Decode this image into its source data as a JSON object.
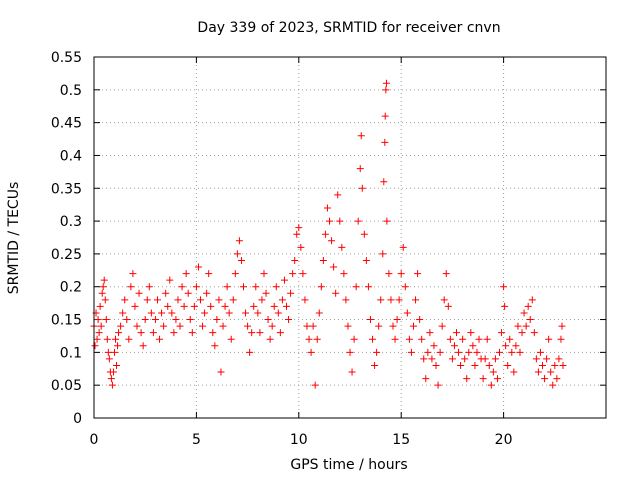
{
  "chart_data": {
    "type": "scatter",
    "title": "Day 339 of 2023, SRMTID for receiver cnvn",
    "xlabel": "GPS time / hours",
    "ylabel": "SRMTID / TECUs",
    "xlim": [
      0,
      25
    ],
    "ylim": [
      0,
      0.55
    ],
    "xticks": [
      0,
      5,
      10,
      15,
      20
    ],
    "yticks": [
      0,
      0.05,
      0.1,
      0.15,
      0.2,
      0.25,
      0.3,
      0.35,
      0.4,
      0.45,
      0.5,
      0.55
    ],
    "ytick_labels": [
      "0",
      "0.05",
      "0.1",
      "0.15",
      "0.2",
      "0.25",
      "0.3",
      "0.35",
      "0.4",
      "0.45",
      "0.5",
      "0.55"
    ],
    "xtick_labels": [
      "0",
      "5",
      "10",
      "15",
      "20"
    ],
    "grid": true,
    "marker": "+",
    "color": "#ff0000",
    "series": [
      {
        "name": "SRMTID",
        "points": [
          [
            0.0,
            0.14
          ],
          [
            0.05,
            0.11
          ],
          [
            0.1,
            0.16
          ],
          [
            0.15,
            0.12
          ],
          [
            0.2,
            0.15
          ],
          [
            0.25,
            0.13
          ],
          [
            0.3,
            0.17
          ],
          [
            0.35,
            0.14
          ],
          [
            0.4,
            0.19
          ],
          [
            0.45,
            0.2
          ],
          [
            0.5,
            0.21
          ],
          [
            0.55,
            0.18
          ],
          [
            0.6,
            0.15
          ],
          [
            0.65,
            0.12
          ],
          [
            0.7,
            0.1
          ],
          [
            0.75,
            0.09
          ],
          [
            0.8,
            0.07
          ],
          [
            0.85,
            0.06
          ],
          [
            0.9,
            0.05
          ],
          [
            0.95,
            0.07
          ],
          [
            1.0,
            0.1
          ],
          [
            1.05,
            0.12
          ],
          [
            1.1,
            0.08
          ],
          [
            1.15,
            0.11
          ],
          [
            1.2,
            0.13
          ],
          [
            1.3,
            0.14
          ],
          [
            1.4,
            0.16
          ],
          [
            1.5,
            0.18
          ],
          [
            1.6,
            0.15
          ],
          [
            1.7,
            0.12
          ],
          [
            1.8,
            0.2
          ],
          [
            1.9,
            0.22
          ],
          [
            2.0,
            0.17
          ],
          [
            2.1,
            0.14
          ],
          [
            2.2,
            0.19
          ],
          [
            2.3,
            0.13
          ],
          [
            2.4,
            0.11
          ],
          [
            2.5,
            0.15
          ],
          [
            2.6,
            0.18
          ],
          [
            2.7,
            0.2
          ],
          [
            2.8,
            0.16
          ],
          [
            2.9,
            0.13
          ],
          [
            3.0,
            0.15
          ],
          [
            3.1,
            0.18
          ],
          [
            3.2,
            0.12
          ],
          [
            3.3,
            0.16
          ],
          [
            3.4,
            0.14
          ],
          [
            3.5,
            0.19
          ],
          [
            3.6,
            0.17
          ],
          [
            3.7,
            0.21
          ],
          [
            3.8,
            0.16
          ],
          [
            3.9,
            0.13
          ],
          [
            4.0,
            0.15
          ],
          [
            4.1,
            0.18
          ],
          [
            4.2,
            0.14
          ],
          [
            4.3,
            0.2
          ],
          [
            4.4,
            0.17
          ],
          [
            4.5,
            0.22
          ],
          [
            4.6,
            0.19
          ],
          [
            4.7,
            0.15
          ],
          [
            4.8,
            0.13
          ],
          [
            4.9,
            0.17
          ],
          [
            5.0,
            0.2
          ],
          [
            5.1,
            0.23
          ],
          [
            5.2,
            0.18
          ],
          [
            5.3,
            0.14
          ],
          [
            5.4,
            0.16
          ],
          [
            5.5,
            0.19
          ],
          [
            5.6,
            0.22
          ],
          [
            5.7,
            0.17
          ],
          [
            5.8,
            0.13
          ],
          [
            5.9,
            0.11
          ],
          [
            6.0,
            0.15
          ],
          [
            6.1,
            0.18
          ],
          [
            6.2,
            0.07
          ],
          [
            6.3,
            0.14
          ],
          [
            6.4,
            0.17
          ],
          [
            6.5,
            0.2
          ],
          [
            6.6,
            0.16
          ],
          [
            6.7,
            0.12
          ],
          [
            6.8,
            0.18
          ],
          [
            6.9,
            0.22
          ],
          [
            7.0,
            0.25
          ],
          [
            7.1,
            0.27
          ],
          [
            7.2,
            0.24
          ],
          [
            7.3,
            0.2
          ],
          [
            7.4,
            0.16
          ],
          [
            7.5,
            0.14
          ],
          [
            7.6,
            0.1
          ],
          [
            7.7,
            0.13
          ],
          [
            7.8,
            0.17
          ],
          [
            7.9,
            0.2
          ],
          [
            8.0,
            0.16
          ],
          [
            8.1,
            0.13
          ],
          [
            8.2,
            0.18
          ],
          [
            8.3,
            0.22
          ],
          [
            8.4,
            0.19
          ],
          [
            8.5,
            0.15
          ],
          [
            8.6,
            0.12
          ],
          [
            8.7,
            0.14
          ],
          [
            8.8,
            0.17
          ],
          [
            8.9,
            0.2
          ],
          [
            9.0,
            0.16
          ],
          [
            9.1,
            0.13
          ],
          [
            9.2,
            0.18
          ],
          [
            9.3,
            0.21
          ],
          [
            9.4,
            0.17
          ],
          [
            9.5,
            0.15
          ],
          [
            9.6,
            0.19
          ],
          [
            9.7,
            0.22
          ],
          [
            9.8,
            0.24
          ],
          [
            9.9,
            0.28
          ],
          [
            10.0,
            0.29
          ],
          [
            10.1,
            0.26
          ],
          [
            10.2,
            0.22
          ],
          [
            10.3,
            0.18
          ],
          [
            10.4,
            0.14
          ],
          [
            10.5,
            0.12
          ],
          [
            10.6,
            0.1
          ],
          [
            10.7,
            0.14
          ],
          [
            10.8,
            0.05
          ],
          [
            10.9,
            0.12
          ],
          [
            11.0,
            0.16
          ],
          [
            11.1,
            0.2
          ],
          [
            11.2,
            0.24
          ],
          [
            11.3,
            0.28
          ],
          [
            11.4,
            0.32
          ],
          [
            11.5,
            0.3
          ],
          [
            11.6,
            0.27
          ],
          [
            11.7,
            0.23
          ],
          [
            11.8,
            0.19
          ],
          [
            11.9,
            0.34
          ],
          [
            12.0,
            0.3
          ],
          [
            12.1,
            0.26
          ],
          [
            12.2,
            0.22
          ],
          [
            12.3,
            0.18
          ],
          [
            12.4,
            0.14
          ],
          [
            12.5,
            0.1
          ],
          [
            12.6,
            0.07
          ],
          [
            12.7,
            0.12
          ],
          [
            12.8,
            0.2
          ],
          [
            12.9,
            0.3
          ],
          [
            13.0,
            0.38
          ],
          [
            13.05,
            0.43
          ],
          [
            13.1,
            0.35
          ],
          [
            13.2,
            0.28
          ],
          [
            13.3,
            0.24
          ],
          [
            13.4,
            0.2
          ],
          [
            13.5,
            0.15
          ],
          [
            13.6,
            0.12
          ],
          [
            13.7,
            0.08
          ],
          [
            13.8,
            0.1
          ],
          [
            13.9,
            0.14
          ],
          [
            14.0,
            0.18
          ],
          [
            14.1,
            0.25
          ],
          [
            14.15,
            0.36
          ],
          [
            14.2,
            0.42
          ],
          [
            14.22,
            0.46
          ],
          [
            14.25,
            0.5
          ],
          [
            14.28,
            0.51
          ],
          [
            14.3,
            0.3
          ],
          [
            14.4,
            0.22
          ],
          [
            14.5,
            0.18
          ],
          [
            14.6,
            0.14
          ],
          [
            14.7,
            0.12
          ],
          [
            14.8,
            0.15
          ],
          [
            14.9,
            0.18
          ],
          [
            15.0,
            0.22
          ],
          [
            15.1,
            0.26
          ],
          [
            15.2,
            0.2
          ],
          [
            15.3,
            0.16
          ],
          [
            15.4,
            0.12
          ],
          [
            15.5,
            0.1
          ],
          [
            15.6,
            0.14
          ],
          [
            15.7,
            0.18
          ],
          [
            15.8,
            0.22
          ],
          [
            15.9,
            0.15
          ],
          [
            16.0,
            0.12
          ],
          [
            16.1,
            0.09
          ],
          [
            16.2,
            0.06
          ],
          [
            16.3,
            0.1
          ],
          [
            16.4,
            0.13
          ],
          [
            16.5,
            0.09
          ],
          [
            16.6,
            0.11
          ],
          [
            16.7,
            0.08
          ],
          [
            16.8,
            0.05
          ],
          [
            16.9,
            0.1
          ],
          [
            17.0,
            0.14
          ],
          [
            17.1,
            0.18
          ],
          [
            17.2,
            0.22
          ],
          [
            17.3,
            0.17
          ],
          [
            17.4,
            0.12
          ],
          [
            17.5,
            0.09
          ],
          [
            17.6,
            0.11
          ],
          [
            17.7,
            0.13
          ],
          [
            17.8,
            0.1
          ],
          [
            17.9,
            0.08
          ],
          [
            18.0,
            0.12
          ],
          [
            18.1,
            0.09
          ],
          [
            18.2,
            0.06
          ],
          [
            18.3,
            0.1
          ],
          [
            18.4,
            0.13
          ],
          [
            18.5,
            0.11
          ],
          [
            18.6,
            0.08
          ],
          [
            18.7,
            0.1
          ],
          [
            18.8,
            0.12
          ],
          [
            18.9,
            0.09
          ],
          [
            19.0,
            0.06
          ],
          [
            19.1,
            0.09
          ],
          [
            19.2,
            0.12
          ],
          [
            19.3,
            0.08
          ],
          [
            19.4,
            0.05
          ],
          [
            19.5,
            0.07
          ],
          [
            19.6,
            0.09
          ],
          [
            19.7,
            0.06
          ],
          [
            19.8,
            0.1
          ],
          [
            19.9,
            0.13
          ],
          [
            20.0,
            0.2
          ],
          [
            20.05,
            0.17
          ],
          [
            20.1,
            0.11
          ],
          [
            20.2,
            0.08
          ],
          [
            20.3,
            0.12
          ],
          [
            20.4,
            0.1
          ],
          [
            20.5,
            0.07
          ],
          [
            20.6,
            0.11
          ],
          [
            20.7,
            0.14
          ],
          [
            20.8,
            0.1
          ],
          [
            20.9,
            0.13
          ],
          [
            21.0,
            0.16
          ],
          [
            21.1,
            0.14
          ],
          [
            21.2,
            0.17
          ],
          [
            21.3,
            0.15
          ],
          [
            21.4,
            0.18
          ],
          [
            21.5,
            0.13
          ],
          [
            21.6,
            0.09
          ],
          [
            21.7,
            0.07
          ],
          [
            21.8,
            0.1
          ],
          [
            21.9,
            0.08
          ],
          [
            22.0,
            0.06
          ],
          [
            22.1,
            0.09
          ],
          [
            22.2,
            0.12
          ],
          [
            22.3,
            0.07
          ],
          [
            22.4,
            0.05
          ],
          [
            22.5,
            0.08
          ],
          [
            22.6,
            0.06
          ],
          [
            22.7,
            0.09
          ],
          [
            22.8,
            0.12
          ],
          [
            22.85,
            0.14
          ],
          [
            22.9,
            0.08
          ]
        ]
      }
    ]
  }
}
